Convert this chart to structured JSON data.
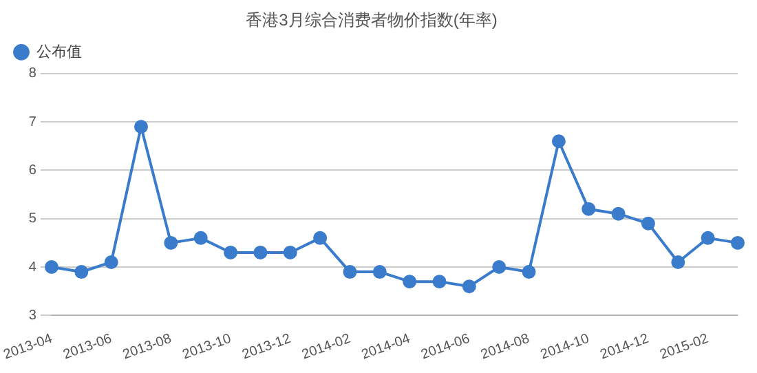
{
  "chart_data": {
    "type": "line",
    "title": "香港3月综合消费者物价指数(年率)",
    "categories": [
      "2013-04",
      null,
      "2013-06",
      null,
      "2013-08",
      null,
      "2013-10",
      null,
      "2013-12",
      null,
      "2014-02",
      null,
      "2014-04",
      null,
      "2014-06",
      null,
      "2014-08",
      null,
      "2014-10",
      null,
      "2014-12",
      null,
      "2015-02",
      null
    ],
    "series": [
      {
        "name": "公布值",
        "color": "#3a7ccb",
        "values": [
          4.0,
          3.9,
          4.1,
          6.9,
          4.5,
          4.6,
          4.3,
          4.3,
          4.3,
          4.6,
          3.9,
          3.9,
          3.7,
          3.7,
          3.6,
          4.0,
          3.9,
          6.6,
          5.2,
          5.1,
          4.9,
          4.1,
          4.6,
          4.5
        ]
      }
    ],
    "ylim": [
      3,
      8
    ],
    "yticks": [
      3,
      4,
      5,
      6,
      7,
      8
    ],
    "grid": "y",
    "legend": "top left",
    "marker": "circle",
    "line_style": "solid"
  }
}
